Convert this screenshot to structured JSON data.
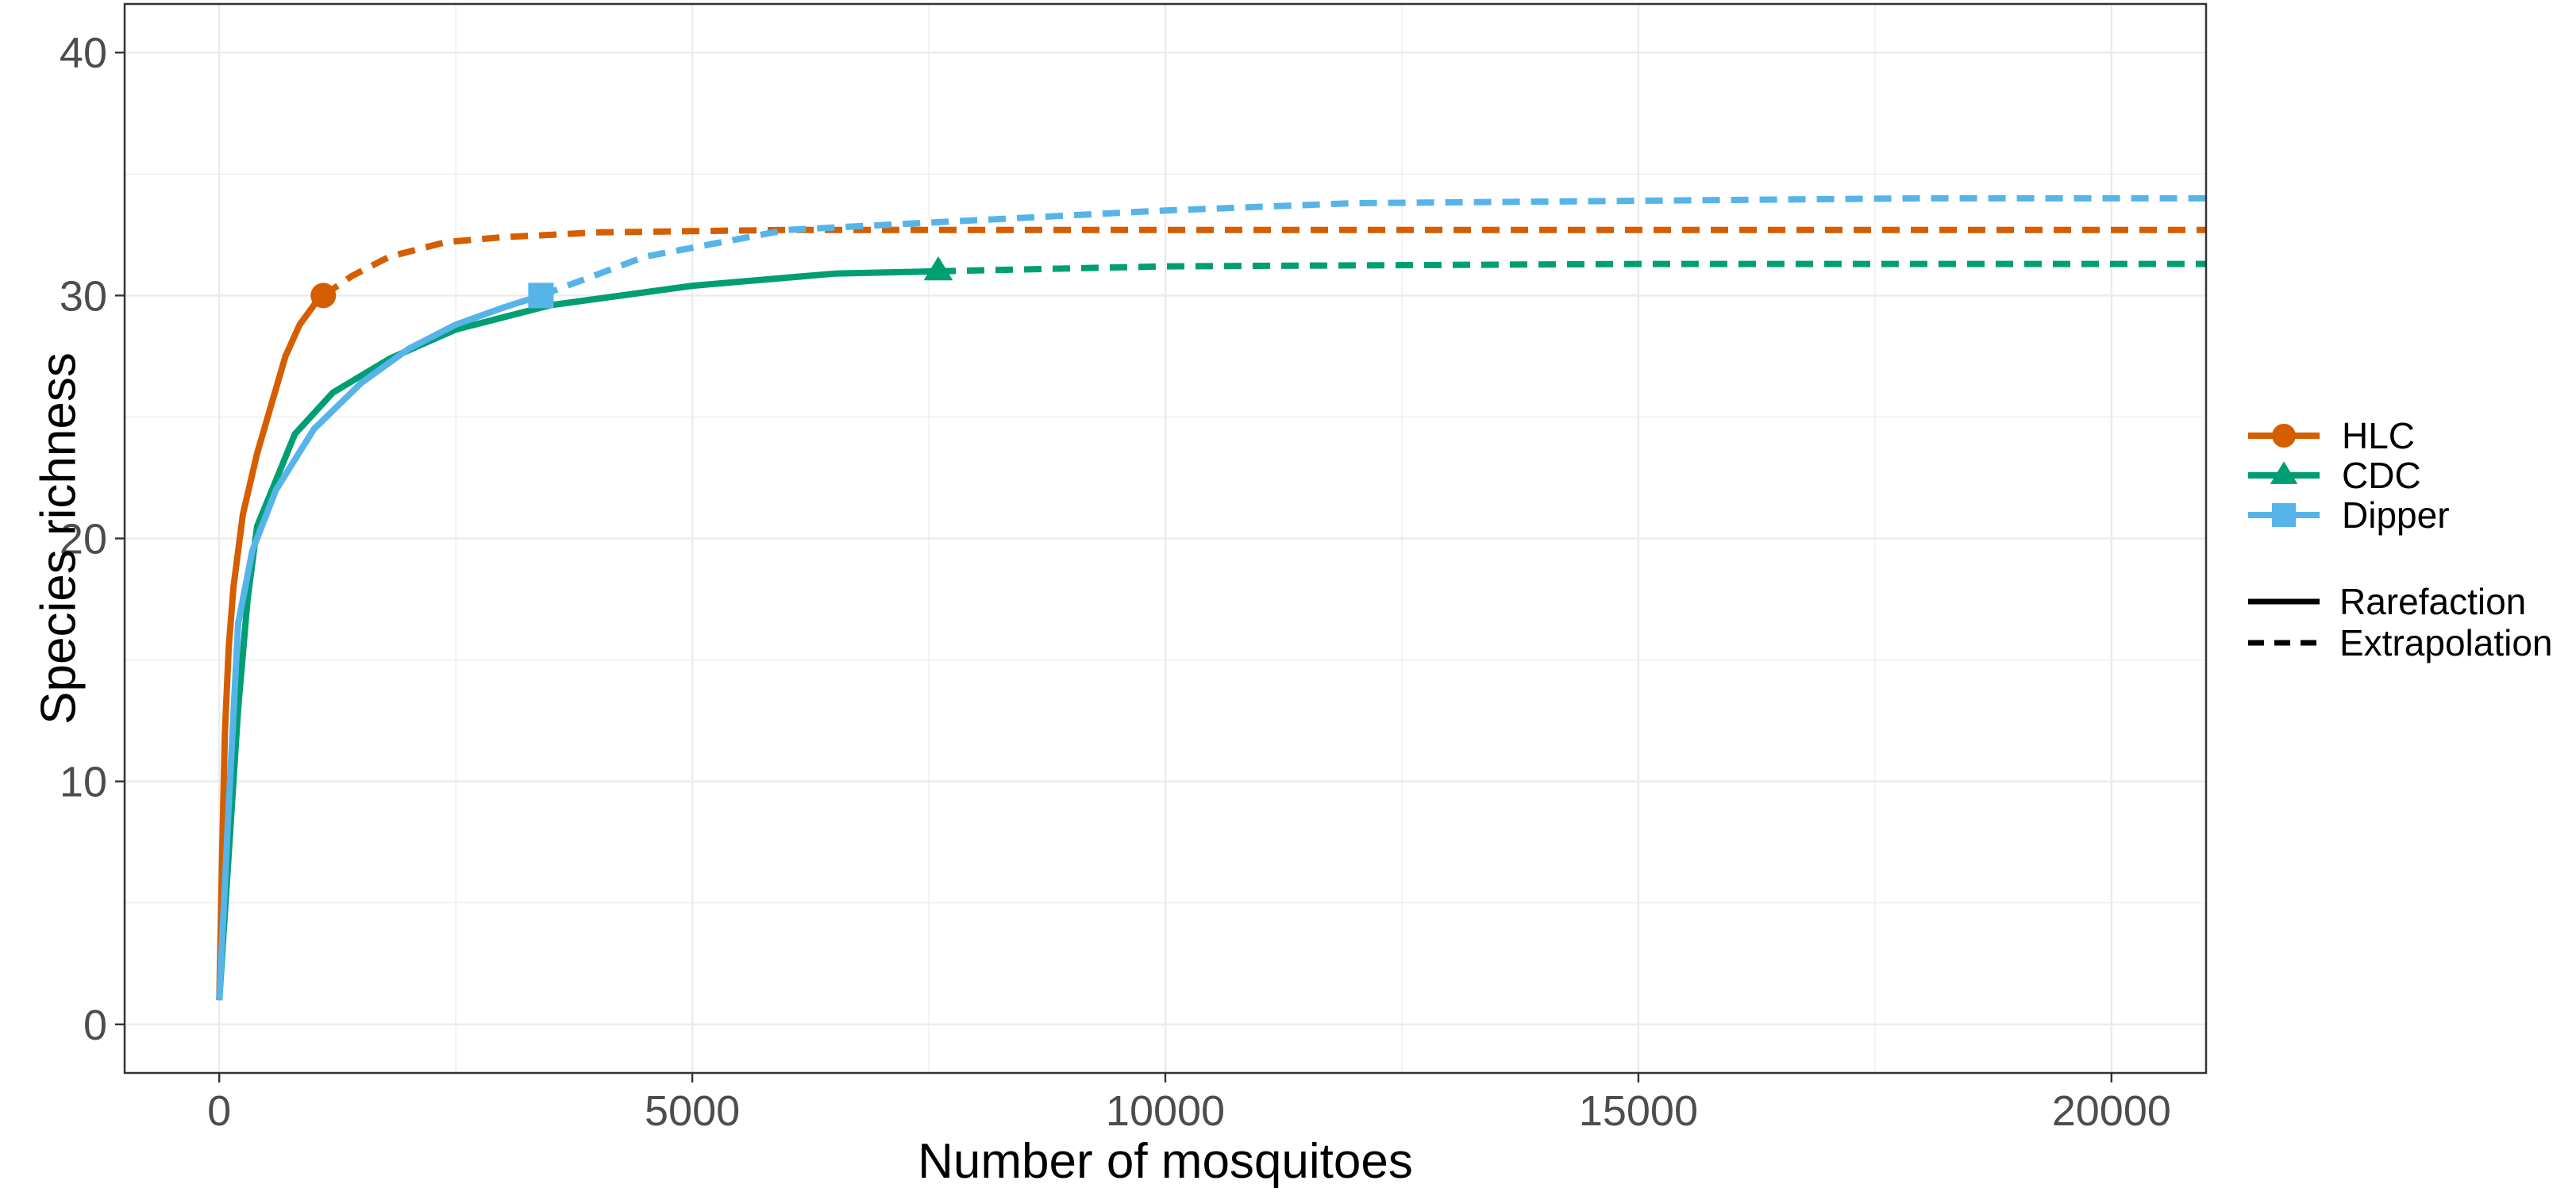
{
  "chart_data": {
    "type": "line",
    "title": "",
    "xlabel": "Number of mosquitoes",
    "ylabel": "Species richness",
    "xlim": [
      -1000,
      21000
    ],
    "ylim": [
      -2,
      42
    ],
    "xticks": [
      0,
      5000,
      10000,
      15000,
      20000
    ],
    "yticks": [
      0,
      10,
      20,
      30,
      40
    ],
    "grid": true,
    "legend": {
      "placement": "right",
      "series_title": "",
      "method_entries": [
        {
          "label": "Rarefaction",
          "dash": "solid"
        },
        {
          "label": "Extrapolation",
          "dash": "dashed"
        }
      ]
    },
    "series": [
      {
        "name": "HLC",
        "color": "#D55E00",
        "marker": "circle",
        "observed": [
          1100,
          30
        ],
        "rarefaction": [
          [
            0,
            1
          ],
          [
            30,
            7
          ],
          [
            60,
            12
          ],
          [
            100,
            15.5
          ],
          [
            150,
            18
          ],
          [
            250,
            21
          ],
          [
            400,
            23.5
          ],
          [
            550,
            25.5
          ],
          [
            700,
            27.5
          ],
          [
            850,
            28.8
          ],
          [
            1000,
            29.6
          ],
          [
            1100,
            30
          ]
        ],
        "extrapolation": [
          [
            1100,
            30
          ],
          [
            1400,
            30.8
          ],
          [
            1800,
            31.6
          ],
          [
            2400,
            32.2
          ],
          [
            3000,
            32.4
          ],
          [
            4000,
            32.6
          ],
          [
            6000,
            32.7
          ],
          [
            10000,
            32.7
          ],
          [
            15000,
            32.7
          ],
          [
            21000,
            32.7
          ]
        ]
      },
      {
        "name": "CDC",
        "color": "#009E73",
        "marker": "triangle",
        "observed": [
          7600,
          31
        ],
        "rarefaction": [
          [
            0,
            1
          ],
          [
            100,
            7
          ],
          [
            200,
            13
          ],
          [
            300,
            17.5
          ],
          [
            400,
            20.5
          ],
          [
            800,
            24.3
          ],
          [
            1200,
            26
          ],
          [
            1800,
            27.4
          ],
          [
            2500,
            28.6
          ],
          [
            3500,
            29.6
          ],
          [
            5000,
            30.4
          ],
          [
            6500,
            30.9
          ],
          [
            7600,
            31
          ]
        ],
        "extrapolation": [
          [
            7600,
            31
          ],
          [
            10000,
            31.2
          ],
          [
            15000,
            31.3
          ],
          [
            21000,
            31.3
          ]
        ]
      },
      {
        "name": "Dipper",
        "color": "#56B4E9",
        "marker": "square",
        "observed": [
          3400,
          30
        ],
        "rarefaction": [
          [
            0,
            1
          ],
          [
            100,
            9
          ],
          [
            200,
            16.5
          ],
          [
            350,
            19.5
          ],
          [
            600,
            22
          ],
          [
            1000,
            24.5
          ],
          [
            1500,
            26.4
          ],
          [
            2000,
            27.8
          ],
          [
            2500,
            28.8
          ],
          [
            3000,
            29.5
          ],
          [
            3400,
            30
          ]
        ],
        "extrapolation": [
          [
            3400,
            30
          ],
          [
            4500,
            31.6
          ],
          [
            6000,
            32.7
          ],
          [
            8000,
            33.1
          ],
          [
            10000,
            33.5
          ],
          [
            12000,
            33.8
          ],
          [
            15000,
            33.9
          ],
          [
            18000,
            34
          ],
          [
            21000,
            34
          ]
        ]
      }
    ]
  }
}
